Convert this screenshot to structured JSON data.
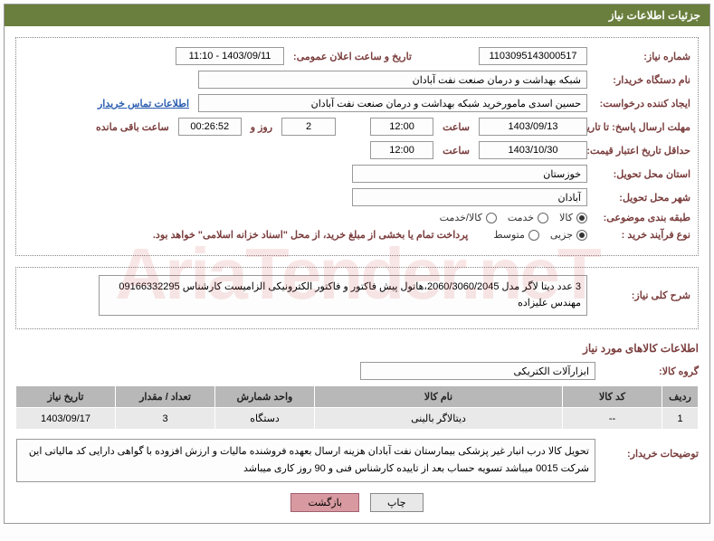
{
  "header": {
    "title": "جزئیات اطلاعات نیاز"
  },
  "watermark": "AriaTender.neT",
  "fields": {
    "need_no_label": "شماره نیاز:",
    "need_no": "1103095143000517",
    "announce_label": "تاریخ و ساعت اعلان عمومی:",
    "announce_val": "1403/09/11 - 11:10",
    "buyer_org_label": "نام دستگاه خریدار:",
    "buyer_org": "شبکه بهداشت و درمان صنعت نفت آبادان",
    "requester_label": "ایجاد کننده درخواست:",
    "requester": "حسین اسدی مامورخرید شبکه بهداشت و درمان صنعت نفت آبادان",
    "contact_link": "اطلاعات تماس خریدار",
    "deadline_send_label": "مهلت ارسال پاسخ: تا تاریخ:",
    "deadline_send_date": "1403/09/13",
    "time_word": "ساعت",
    "deadline_send_time": "12:00",
    "days_remain": "2",
    "days_word": "روز و",
    "time_remain": "00:26:52",
    "remain_word": "ساعت باقی مانده",
    "validity_label": "حداقل تاریخ اعتبار قیمت: تا تاریخ:",
    "validity_date": "1403/10/30",
    "validity_time": "12:00",
    "province_label": "استان محل تحویل:",
    "province": "خوزستان",
    "city_label": "شهر محل تحویل:",
    "city": "آبادان",
    "category_label": "طبقه بندی موضوعی:",
    "process_label": "نوع فرآیند خرید :",
    "process_note": "پرداخت تمام یا بخشی از مبلغ خرید، از محل \"اسناد خزانه اسلامی\" خواهد بود.",
    "desc_label": "شرح کلی نیاز:",
    "desc_text": "3 عدد دیتا لاگر مدل 2060/3060/2045،هاتول پیش فاکتور و فاکتور الکترونیکی الزامیست کارشناس 09166332295 مهندس علیزاده",
    "goods_section": "اطلاعات کالاهای مورد نیاز",
    "group_label": "گروه کالا:",
    "group_val": "ابزارآلات الکتریکی",
    "buyer_remark_label": "توضیحات خریدار:",
    "buyer_remark": "تحویل کالا درب انبار غیر پزشکی بیمارستان نفت آبادان هزینه ارسال بعهده فروشنده  مالیات و ارزش افزوده با گواهی دارایی کد مالیاتی این شرکت 0015 میباشد  تسویه حساب بعد از تاییده کارشناس فنی و 90 روز کاری میباشد"
  },
  "radios": {
    "category": [
      {
        "label": "کالا",
        "checked": true
      },
      {
        "label": "خدمت",
        "checked": false
      },
      {
        "label": "کالا/خدمت",
        "checked": false
      }
    ],
    "process": [
      {
        "label": "جزیی",
        "checked": true
      },
      {
        "label": "متوسط",
        "checked": false
      }
    ]
  },
  "table": {
    "headers": [
      "ردیف",
      "کد کالا",
      "نام کالا",
      "واحد شمارش",
      "تعداد / مقدار",
      "تاریخ نیاز"
    ],
    "row": [
      "1",
      "--",
      "دیتالاگر بالینی",
      "دستگاه",
      "3",
      "1403/09/17"
    ]
  },
  "buttons": {
    "print": "چاپ",
    "return": "بازگشت"
  }
}
